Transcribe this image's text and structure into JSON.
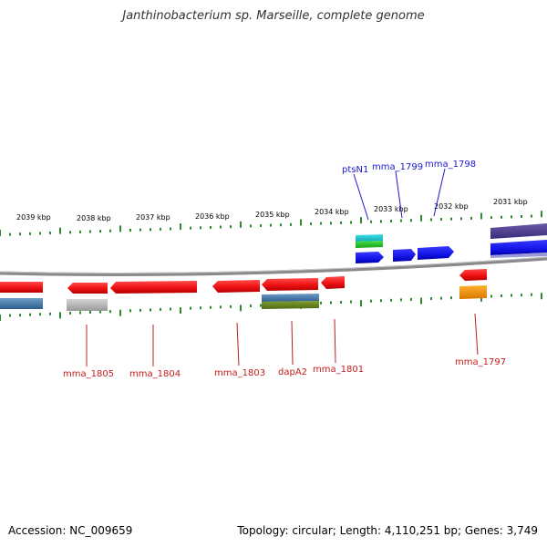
{
  "title": "Janthinobacterium sp. Marseille, complete genome",
  "footer": {
    "accession": "Accession: NC_009659",
    "summary": "Topology: circular; Length: 4,110,251 bp; Genes: 3,749"
  },
  "colors": {
    "backbone": "#8a8a8a",
    "tick": "#2f8a2f",
    "forward_gene": "#1414e6",
    "reverse_gene": "#ee1111",
    "forward_label": "#1a1ad0",
    "reverse_label": "#c41c1c",
    "kbp_label": "#000000"
  },
  "kbp_labels": [
    "2039 kbp",
    "2038 kbp",
    "2037 kbp",
    "2036 kbp",
    "2035 kbp",
    "2034 kbp",
    "2033 kbp",
    "2032 kbp",
    "2031 kbp"
  ],
  "forward_gene_labels": [
    "ptsN1",
    "mma_1799",
    "mma_1798"
  ],
  "reverse_gene_labels": [
    "mma_1805",
    "mma_1804",
    "mma_1803",
    "dapA2",
    "mma_1801",
    "mma_1797"
  ]
}
